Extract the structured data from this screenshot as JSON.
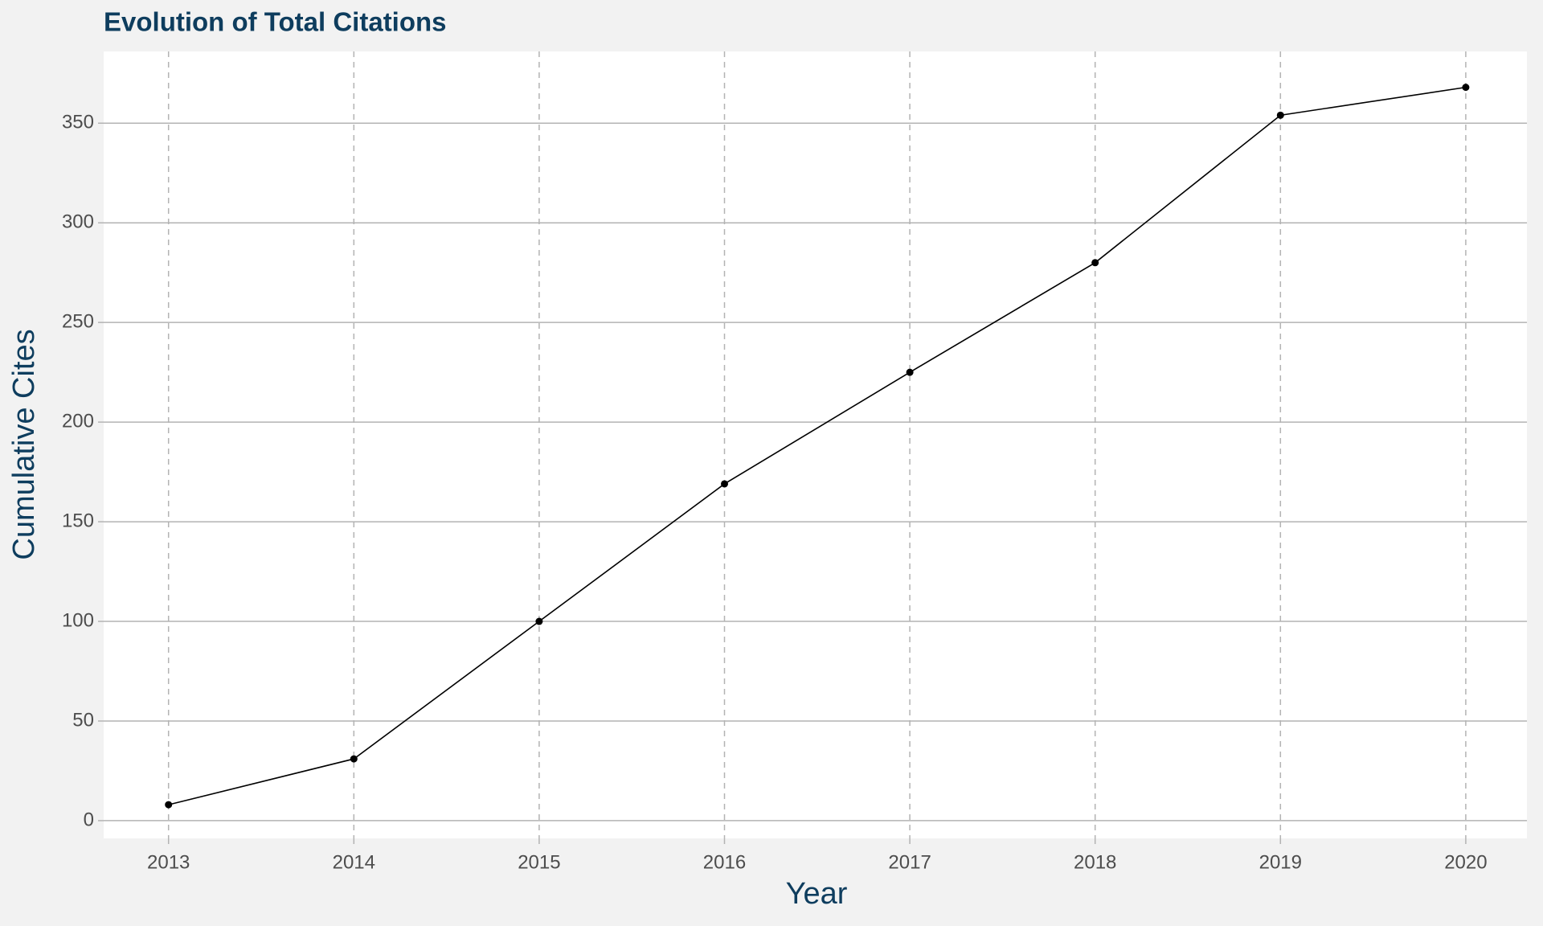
{
  "chart_data": {
    "type": "line",
    "title": "Evolution of Total Citations",
    "x_label": "Year",
    "y_label": "Cumulative Cites",
    "x": [
      2013,
      2014,
      2015,
      2016,
      2017,
      2018,
      2019,
      2020
    ],
    "series": [
      {
        "name": "Cumulative Cites",
        "color": "#000000",
        "values": [
          8,
          31,
          100,
          169,
          225,
          280,
          354,
          368
        ]
      }
    ],
    "xlim": [
      2012.65,
      2020.33
    ],
    "xticks": [
      2013,
      2014,
      2015,
      2016,
      2017,
      2018,
      2019,
      2020
    ],
    "ylim": [
      -8.9,
      386
    ],
    "yticks": [
      0,
      50,
      100,
      150,
      200,
      250,
      300,
      350
    ],
    "grid": true
  }
}
